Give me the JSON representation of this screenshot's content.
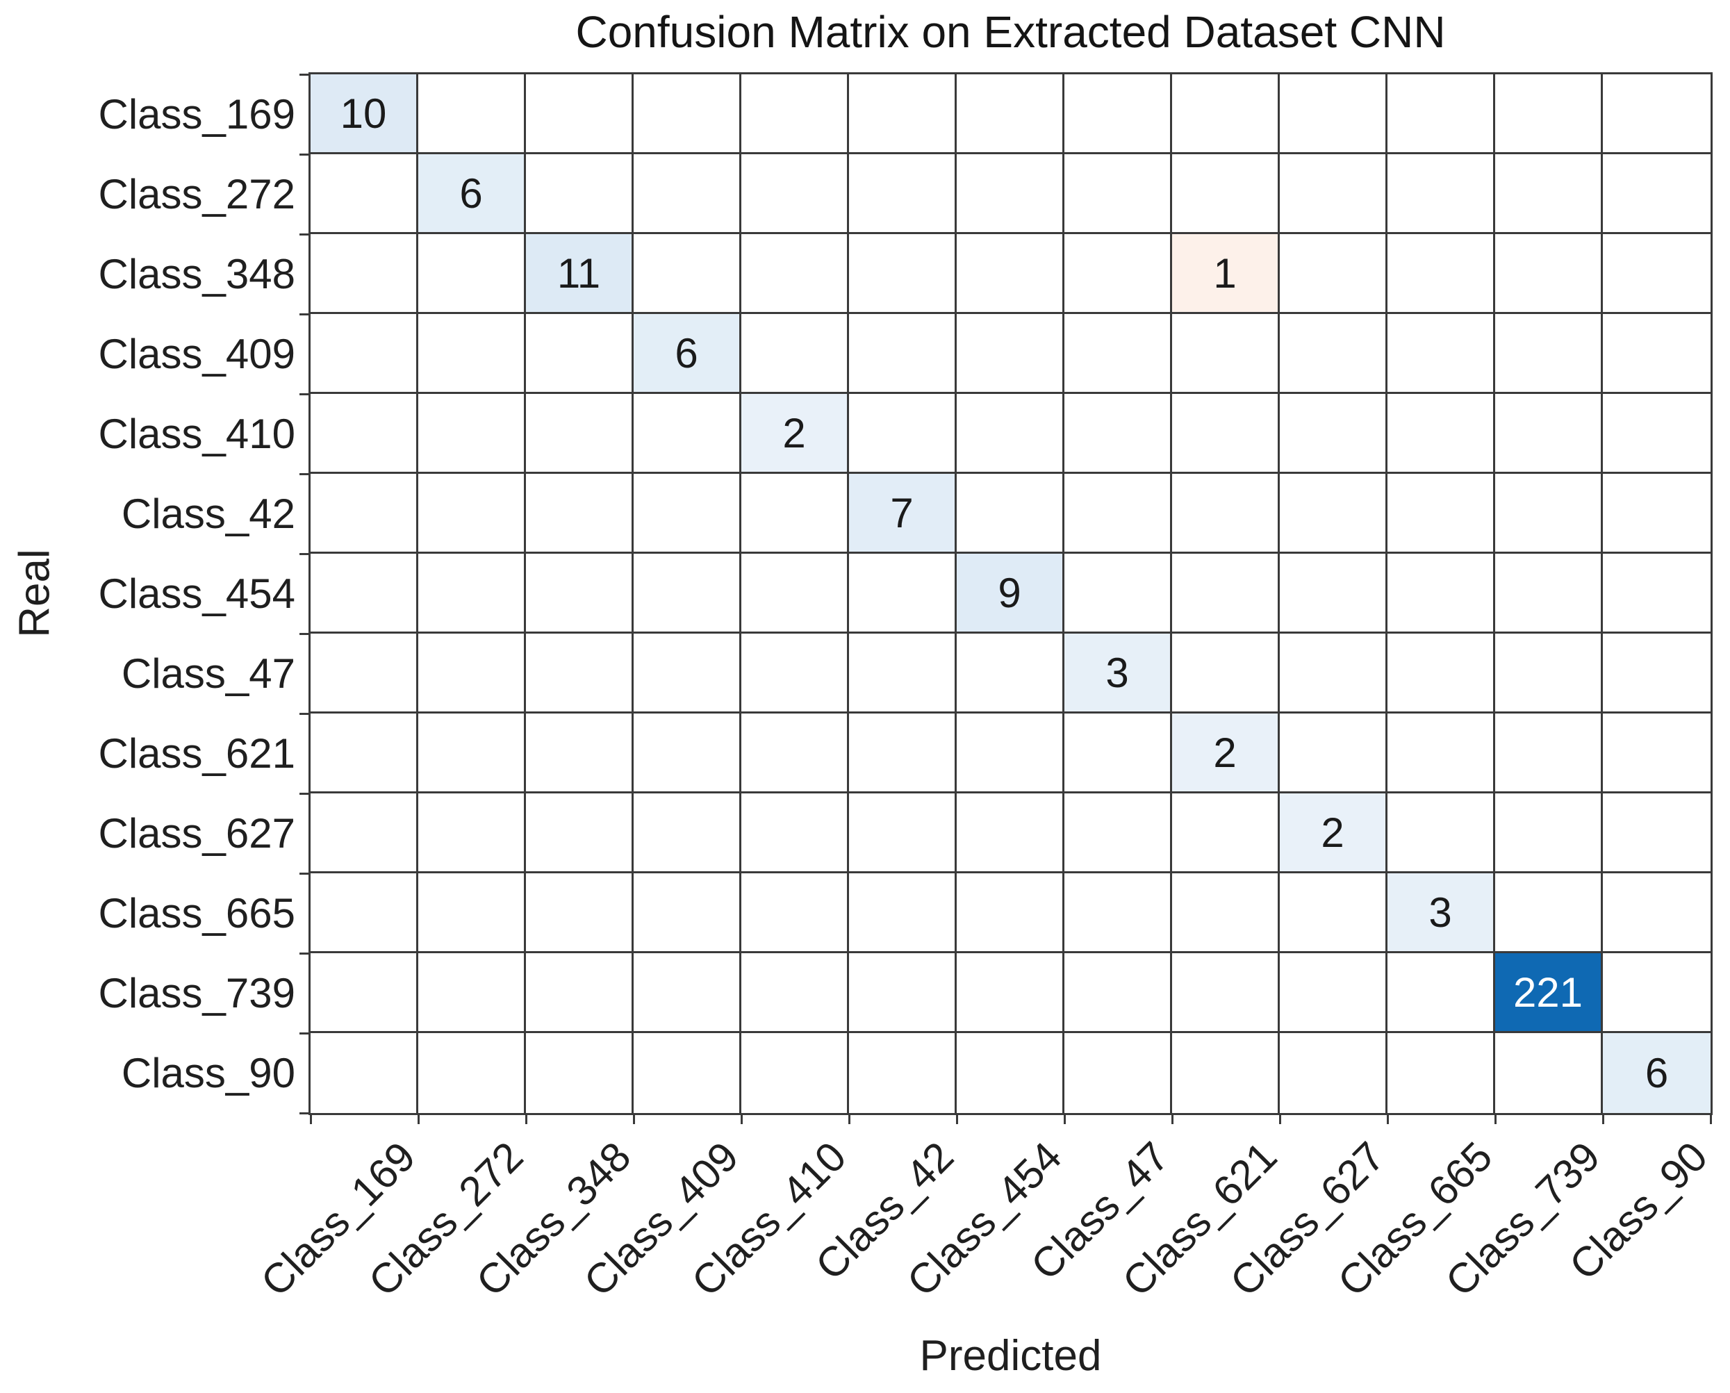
{
  "chart_data": {
    "type": "heatmap",
    "title": "Confusion Matrix on Extracted Dataset CNN",
    "xlabel": "Predicted",
    "ylabel": "Real",
    "categories": [
      "Class_169",
      "Class_272",
      "Class_348",
      "Class_409",
      "Class_410",
      "Class_42",
      "Class_454",
      "Class_47",
      "Class_621",
      "Class_627",
      "Class_665",
      "Class_739",
      "Class_90"
    ],
    "matrix": [
      [
        10,
        0,
        0,
        0,
        0,
        0,
        0,
        0,
        0,
        0,
        0,
        0,
        0
      ],
      [
        0,
        6,
        0,
        0,
        0,
        0,
        0,
        0,
        0,
        0,
        0,
        0,
        0
      ],
      [
        0,
        0,
        11,
        0,
        0,
        0,
        0,
        0,
        1,
        0,
        0,
        0,
        0
      ],
      [
        0,
        0,
        0,
        6,
        0,
        0,
        0,
        0,
        0,
        0,
        0,
        0,
        0
      ],
      [
        0,
        0,
        0,
        0,
        2,
        0,
        0,
        0,
        0,
        0,
        0,
        0,
        0
      ],
      [
        0,
        0,
        0,
        0,
        0,
        7,
        0,
        0,
        0,
        0,
        0,
        0,
        0
      ],
      [
        0,
        0,
        0,
        0,
        0,
        0,
        9,
        0,
        0,
        0,
        0,
        0,
        0
      ],
      [
        0,
        0,
        0,
        0,
        0,
        0,
        0,
        3,
        0,
        0,
        0,
        0,
        0
      ],
      [
        0,
        0,
        0,
        0,
        0,
        0,
        0,
        0,
        2,
        0,
        0,
        0,
        0
      ],
      [
        0,
        0,
        0,
        0,
        0,
        0,
        0,
        0,
        0,
        2,
        0,
        0,
        0
      ],
      [
        0,
        0,
        0,
        0,
        0,
        0,
        0,
        0,
        0,
        0,
        3,
        0,
        0
      ],
      [
        0,
        0,
        0,
        0,
        0,
        0,
        0,
        0,
        0,
        0,
        0,
        221,
        0
      ],
      [
        0,
        0,
        0,
        0,
        0,
        0,
        0,
        0,
        0,
        0,
        0,
        0,
        6
      ]
    ],
    "colormap": {
      "0": {
        "bg": "#ffffff",
        "fg": "#1a1a1a"
      },
      "1": {
        "bg": "#fdf1ea",
        "fg": "#1a1a1a"
      },
      "2": {
        "bg": "#e9f1f9",
        "fg": "#1a1a1a"
      },
      "3": {
        "bg": "#e7f0f8",
        "fg": "#1a1a1a"
      },
      "6": {
        "bg": "#e3eef7",
        "fg": "#1a1a1a"
      },
      "7": {
        "bg": "#e2edf7",
        "fg": "#1a1a1a"
      },
      "9": {
        "bg": "#dfebf6",
        "fg": "#1a1a1a"
      },
      "10": {
        "bg": "#deeaf5",
        "fg": "#1a1a1a"
      },
      "11": {
        "bg": "#ddeaf5",
        "fg": "#1a1a1a"
      },
      "221": {
        "bg": "#0f69b3",
        "fg": "#ffffff"
      }
    },
    "style": {
      "grid_line_color": "#3a3a3a",
      "text_color": "#1f1f1f",
      "background": "#ffffff"
    },
    "legend": "none",
    "grid": "on"
  }
}
